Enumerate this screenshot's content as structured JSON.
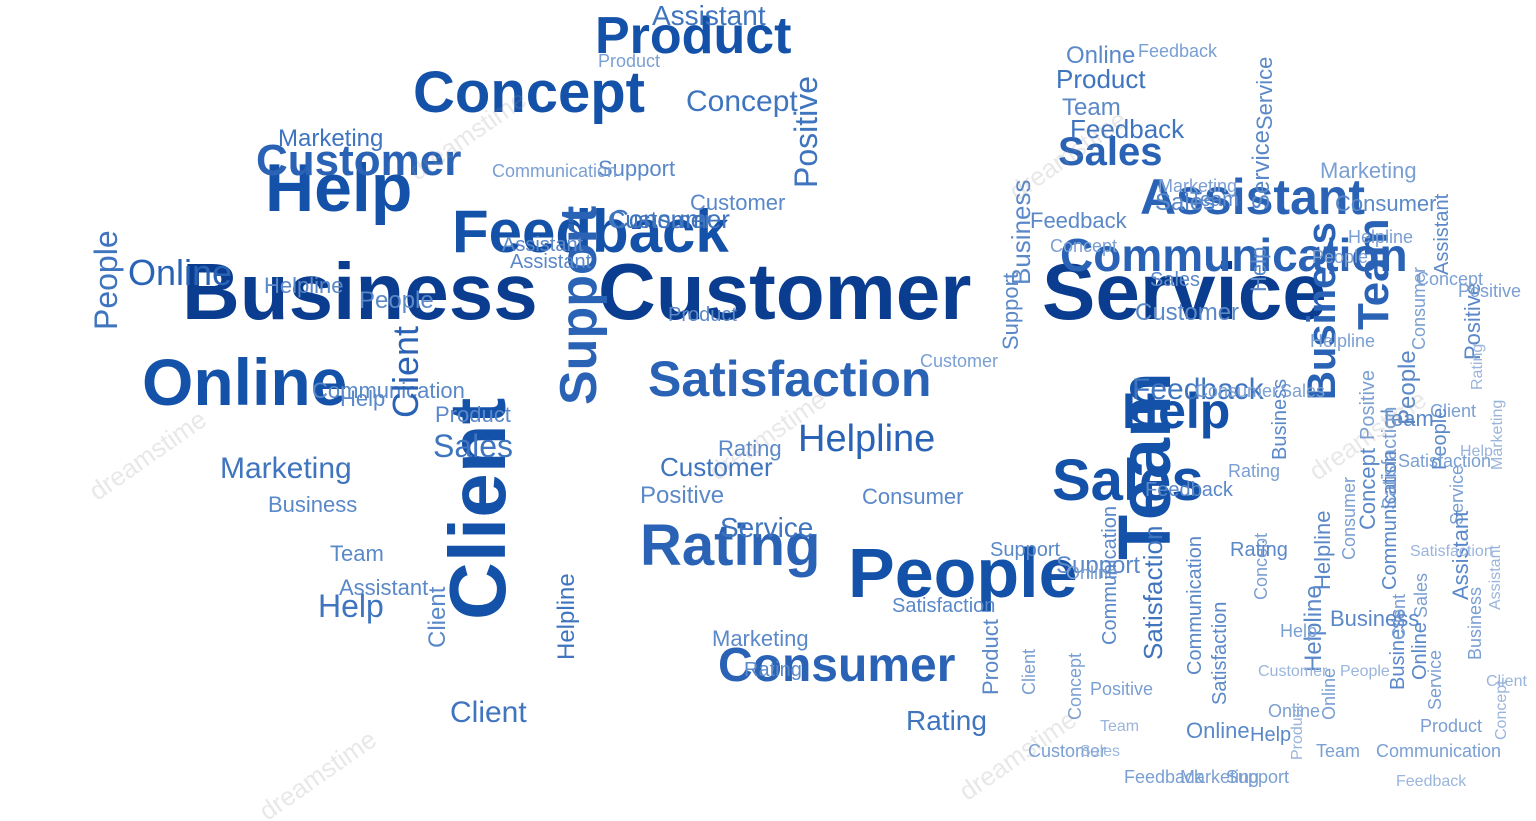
{
  "words": [
    "Business",
    "Customer",
    "Service",
    "Online",
    "People",
    "Client",
    "Rating",
    "Team",
    "Help",
    "Feedback",
    "Concept",
    "Product",
    "Sales",
    "Consumer",
    "Satisfaction",
    "Assistant",
    "Communication",
    "Positive",
    "Marketing",
    "Support",
    "Helpline",
    "Customer",
    "Business",
    "Support",
    "Sales",
    "Help",
    "Product",
    "Concept",
    "Communication",
    "Assistant",
    "Marketing",
    "Online",
    "Customer",
    "Helpline",
    "Feedback",
    "Team",
    "Rating",
    "Client",
    "Consumer",
    "Positive",
    "Satisfaction",
    "People",
    "Service",
    "Sales",
    "Help",
    "Product",
    "Online",
    "Customer",
    "Business",
    "Feedback",
    "Marketing",
    "Support",
    "Assistant",
    "Team",
    "Communication",
    "Concept",
    "Helpline",
    "Client",
    "Consumer",
    "Positive",
    "People",
    "Rating",
    "Satisfaction",
    "Service",
    "Sales",
    "Help",
    "Online",
    "Product",
    "Customer",
    "Business",
    "Team",
    "Feedback",
    "Marketing",
    "Support",
    "Assistant",
    "Client",
    "Communication",
    "Concept",
    "Helpline",
    "Consumer",
    "Positive",
    "Rating",
    "People",
    "Satisfaction",
    "Service",
    "Sales",
    "Help",
    "Online",
    "Customer",
    "Product",
    "Business",
    "Team",
    "Feedback",
    "Marketing",
    "Support",
    "Assistant",
    "Client",
    "Concept",
    "Helpline",
    "Consumer",
    "Positive",
    "Rating",
    "People",
    "Satisfaction",
    "Service",
    "Communication",
    "Sales",
    "Help",
    "Online",
    "Customer",
    "Product",
    "Business",
    "Team",
    "Feedback",
    "Marketing",
    "Support",
    "Assistant",
    "Client",
    "Concept",
    "Helpline",
    "Consumer",
    "Positive",
    "Rating",
    "People",
    "Satisfaction",
    "Service",
    "Communication",
    "Sales",
    "Help",
    "Online",
    "Customer",
    "Product",
    "Business",
    "Team",
    "Feedback",
    "Marketing",
    "Support",
    "Assistant",
    "Client",
    "Concept",
    "Helpline",
    "Consumer",
    "Positive",
    "Rating",
    "People",
    "Satisfaction",
    "Service",
    "Communication",
    "Sales",
    "Help",
    "Online",
    "Customer",
    "Product",
    "Business",
    "Team",
    "Feedback",
    "Marketing",
    "Support",
    "Assistant",
    "Client",
    "Concept",
    "Helpline",
    "Consumer",
    "Positive",
    "Rating",
    "People",
    "Satisfaction",
    "Service",
    "Communication"
  ],
  "watermark": "dreamstime",
  "colors": [
    "#0a3d8f",
    "#1451a8",
    "#2a63b5",
    "#3f74bf",
    "#5a88c8",
    "#7a9fd2",
    "#9ab5dc"
  ]
}
